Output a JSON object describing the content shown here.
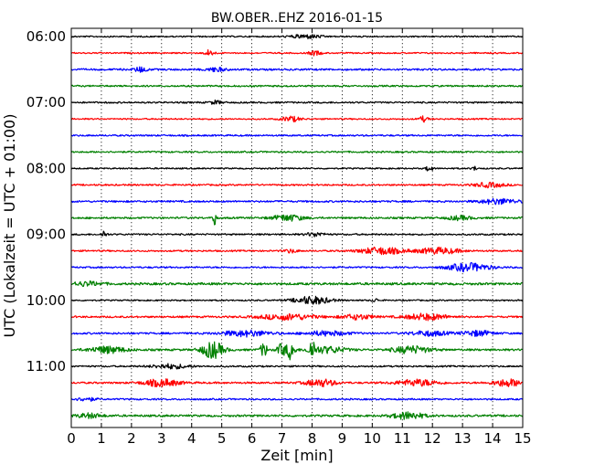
{
  "chart_data": {
    "type": "line",
    "title": "BW.OBER..EHZ 2016-01-15",
    "xlabel": "Zeit  [min]",
    "ylabel": "UTC (Lokalzeit = UTC + 01:00)",
    "xlim": [
      0,
      15
    ],
    "x_ticks": [
      "0",
      "1",
      "2",
      "3",
      "4",
      "5",
      "6",
      "7",
      "8",
      "9",
      "10",
      "11",
      "12",
      "13",
      "14",
      "15"
    ],
    "y_tick_labels": [
      "06:00",
      "07:00",
      "08:00",
      "09:00",
      "10:00",
      "11:00"
    ],
    "y_tick_rows": [
      0,
      4,
      8,
      12,
      16,
      20
    ],
    "grid": true,
    "trace_colors": [
      "#000000",
      "#ff0000",
      "#0000ff",
      "#008000"
    ],
    "traces": [
      {
        "start": "06:00",
        "color": "#000000",
        "base": 0.25,
        "events": [
          [
            7.8,
            0.9,
            0.5
          ]
        ]
      },
      {
        "start": "06:15",
        "color": "#ff0000",
        "base": 0.25,
        "events": [
          [
            4.6,
            1.5,
            0.15
          ],
          [
            8.1,
            1.0,
            0.2
          ]
        ]
      },
      {
        "start": "06:30",
        "color": "#0000ff",
        "base": 0.35,
        "events": [
          [
            2.3,
            1.2,
            0.2
          ],
          [
            4.8,
            0.9,
            0.3
          ]
        ]
      },
      {
        "start": "06:45",
        "color": "#008000",
        "base": 0.3,
        "events": []
      },
      {
        "start": "07:00",
        "color": "#000000",
        "base": 0.3,
        "events": [
          [
            4.8,
            0.8,
            0.2
          ]
        ]
      },
      {
        "start": "07:15",
        "color": "#ff0000",
        "base": 0.25,
        "events": [
          [
            7.3,
            1.2,
            0.3
          ],
          [
            11.7,
            1.2,
            0.15
          ]
        ]
      },
      {
        "start": "07:30",
        "color": "#0000ff",
        "base": 0.3,
        "events": []
      },
      {
        "start": "07:45",
        "color": "#008000",
        "base": 0.3,
        "events": []
      },
      {
        "start": "08:00",
        "color": "#000000",
        "base": 0.25,
        "events": [
          [
            11.9,
            1.5,
            0.1
          ],
          [
            13.4,
            0.8,
            0.1
          ]
        ]
      },
      {
        "start": "08:15",
        "color": "#ff0000",
        "base": 0.3,
        "events": [
          [
            13.9,
            1.0,
            0.5
          ]
        ]
      },
      {
        "start": "08:30",
        "color": "#0000ff",
        "base": 0.35,
        "events": [
          [
            14.2,
            1.2,
            0.6
          ]
        ]
      },
      {
        "start": "08:45",
        "color": "#008000",
        "base": 0.35,
        "events": [
          [
            4.75,
            4.5,
            0.05
          ],
          [
            7.2,
            1.4,
            0.5
          ],
          [
            12.9,
            0.9,
            0.4
          ]
        ]
      },
      {
        "start": "09:00",
        "color": "#000000",
        "base": 0.3,
        "events": [
          [
            1.1,
            1.8,
            0.08
          ],
          [
            8.1,
            0.9,
            0.3
          ]
        ]
      },
      {
        "start": "09:15",
        "color": "#ff0000",
        "base": 0.3,
        "events": [
          [
            10.3,
            1.6,
            0.7
          ],
          [
            12.2,
            1.4,
            0.7
          ],
          [
            7.3,
            0.8,
            0.2
          ]
        ]
      },
      {
        "start": "09:30",
        "color": "#0000ff",
        "base": 0.3,
        "events": [
          [
            13.2,
            1.8,
            0.7
          ]
        ]
      },
      {
        "start": "09:45",
        "color": "#008000",
        "base": 0.45,
        "events": [
          [
            0.5,
            0.9,
            0.5
          ]
        ]
      },
      {
        "start": "10:00",
        "color": "#000000",
        "base": 0.25,
        "events": [
          [
            8.0,
            1.8,
            0.6
          ],
          [
            10.1,
            0.8,
            0.1
          ]
        ]
      },
      {
        "start": "10:15",
        "color": "#ff0000",
        "base": 0.35,
        "events": [
          [
            7.2,
            1.3,
            0.9
          ],
          [
            9.5,
            1.1,
            0.5
          ],
          [
            11.8,
            1.4,
            0.7
          ]
        ]
      },
      {
        "start": "10:30",
        "color": "#0000ff",
        "base": 0.35,
        "events": [
          [
            5.8,
            1.3,
            0.8
          ],
          [
            8.5,
            1.0,
            0.7
          ],
          [
            11.9,
            1.1,
            0.6
          ],
          [
            13.5,
            1.2,
            0.5
          ]
        ]
      },
      {
        "start": "10:45",
        "color": "#008000",
        "base": 0.4,
        "events": [
          [
            1.2,
            1.5,
            0.6
          ],
          [
            4.7,
            3.8,
            0.35
          ],
          [
            6.4,
            3.0,
            0.12
          ],
          [
            7.0,
            2.8,
            0.15
          ],
          [
            7.3,
            4.6,
            0.12
          ],
          [
            8.0,
            4.0,
            0.12
          ],
          [
            8.5,
            1.4,
            0.6
          ],
          [
            11.3,
            1.6,
            0.6
          ]
        ]
      },
      {
        "start": "11:00",
        "color": "#000000",
        "base": 0.3,
        "events": [
          [
            3.3,
            1.0,
            0.6
          ]
        ]
      },
      {
        "start": "11:15",
        "color": "#ff0000",
        "base": 0.35,
        "events": [
          [
            3.0,
            1.6,
            0.6
          ],
          [
            8.3,
            1.6,
            0.5
          ],
          [
            11.5,
            1.4,
            0.7
          ],
          [
            14.5,
            1.6,
            0.5
          ]
        ]
      },
      {
        "start": "11:30",
        "color": "#0000ff",
        "base": 0.3,
        "events": [
          [
            0.5,
            0.8,
            0.3
          ]
        ]
      },
      {
        "start": "11:45",
        "color": "#008000",
        "base": 0.4,
        "events": [
          [
            0.6,
            1.0,
            0.4
          ],
          [
            11.2,
            1.6,
            0.5
          ]
        ]
      }
    ]
  }
}
